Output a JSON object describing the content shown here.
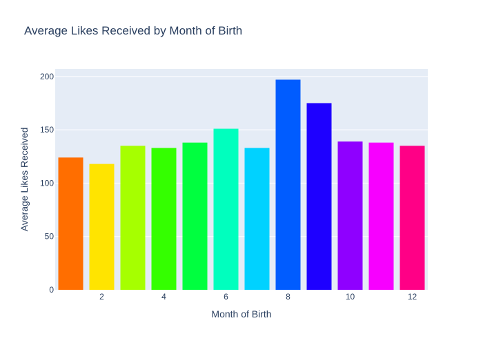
{
  "chart_data": {
    "type": "bar",
    "title": "Average Likes Received by Month of Birth",
    "xlabel": "Month of Birth",
    "ylabel": "Average Likes Received",
    "x": [
      1,
      2,
      3,
      4,
      5,
      6,
      7,
      8,
      9,
      10,
      11,
      12
    ],
    "values": [
      124,
      118,
      135,
      133,
      138,
      151,
      133,
      197,
      175,
      139,
      138,
      135
    ],
    "bar_colors": [
      "#ff6e00",
      "#ffe400",
      "#a6ff00",
      "#34ff00",
      "#00ff3f",
      "#00ffbe",
      "#00d2ff",
      "#005cff",
      "#1e00ff",
      "#8f00ff",
      "#f700ff",
      "#ff0086"
    ],
    "xlim": [
      0.5,
      12.5
    ],
    "ylim": [
      0,
      207
    ],
    "x_ticks": [
      2,
      4,
      6,
      8,
      10,
      12
    ],
    "y_ticks": [
      0,
      50,
      100,
      150,
      200
    ],
    "grid": true,
    "plot_background": "#e5ecf6",
    "legend": "none"
  }
}
